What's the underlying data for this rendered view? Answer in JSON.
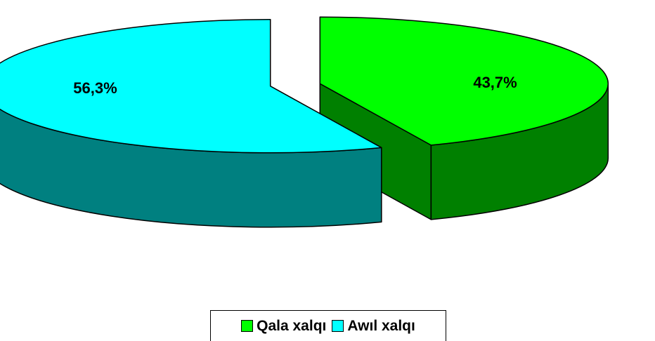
{
  "chart_data": {
    "type": "pie",
    "style": "3d-exploded",
    "categories": [
      "Qala xalqı",
      "Awıl xalqı"
    ],
    "values": [
      43.7,
      56.3
    ],
    "data_labels": [
      "43,7%",
      "56,3%"
    ],
    "colors": {
      "Qala xalqı": {
        "top": "#00ff00",
        "side": "#008000"
      },
      "Awıl xalqı": {
        "top": "#00ffff",
        "side": "#008080"
      }
    },
    "legend_position": "bottom",
    "title": ""
  },
  "legend": [
    {
      "label": "Qala xalqı",
      "color": "#00ff00"
    },
    {
      "label": "Awıl xalqı",
      "color": "#00ffff"
    }
  ]
}
